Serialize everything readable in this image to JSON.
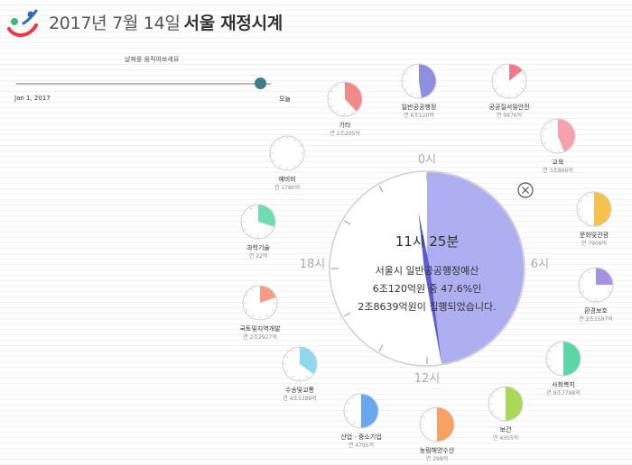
{
  "header": {
    "title_date": "2017년 7월 14일",
    "title_main": "서울 재정시계"
  },
  "slider": {
    "hint": "날짜를 움직여보세요",
    "start_label": "Jan 1, 2017",
    "end_label": "오늘",
    "progress": 0.96
  },
  "clock": {
    "hour_labels": {
      "top": "0시",
      "right": "6시",
      "bottom": "12시",
      "left": "18시"
    },
    "time": "11시 25분",
    "desc_line1": "서울시 일반공공행정예산",
    "desc_line2": "6조120억원 중 47.6%인",
    "desc_line3": "2조8639억원이 집행되었습니다.",
    "fill_fraction": 0.476,
    "fill_color": "#aeaef0",
    "hand_color": "#5b5bd6"
  },
  "categories": [
    {
      "name": "일반공공행정",
      "amount": "연 6조120억",
      "fraction": 0.476,
      "color": "#8f8fe0"
    },
    {
      "name": "공공질서및안전",
      "amount": "연 9976억",
      "fraction": 0.14,
      "color": "#f07a8a"
    },
    {
      "name": "교육",
      "amount": "연 3조866억",
      "fraction": 0.44,
      "color": "#f7a1b0"
    },
    {
      "name": "문화및관광",
      "amount": "연 7909억",
      "fraction": 0.5,
      "color": "#f5c24d"
    },
    {
      "name": "환경보호",
      "amount": "연 2조1597억",
      "fraction": 0.25,
      "color": "#a592e0"
    },
    {
      "name": "사회복지",
      "amount": "연 9조7798억",
      "fraction": 0.5,
      "color": "#5cd6a8"
    },
    {
      "name": "보건",
      "amount": "연 4355억",
      "fraction": 0.5,
      "color": "#aad95a"
    },
    {
      "name": "농림해양수산",
      "amount": "연 298억",
      "fraction": 0.5,
      "color": "#f7a263"
    },
    {
      "name": "산업 · 중소기업",
      "amount": "연 4795억",
      "fraction": 0.5,
      "color": "#6aa8ee"
    },
    {
      "name": "수송및교통",
      "amount": "연 4조5389억",
      "fraction": 0.35,
      "color": "#8fd8f0"
    },
    {
      "name": "국토및지역개발",
      "amount": "연 2조2927억",
      "fraction": 0.2,
      "color": "#f59c88"
    },
    {
      "name": "과학기술",
      "amount": "연 22억",
      "fraction": 0.3,
      "color": "#70dcb0"
    },
    {
      "name": "예비비",
      "amount": "연 1780억",
      "fraction": 0.0,
      "color": "#cccccc"
    },
    {
      "name": "기타",
      "amount": "연 2조205억",
      "fraction": 0.38,
      "color": "#f08a8a"
    }
  ],
  "icons": {
    "logo": "seoul-logo-icon",
    "close": "close-icon"
  }
}
